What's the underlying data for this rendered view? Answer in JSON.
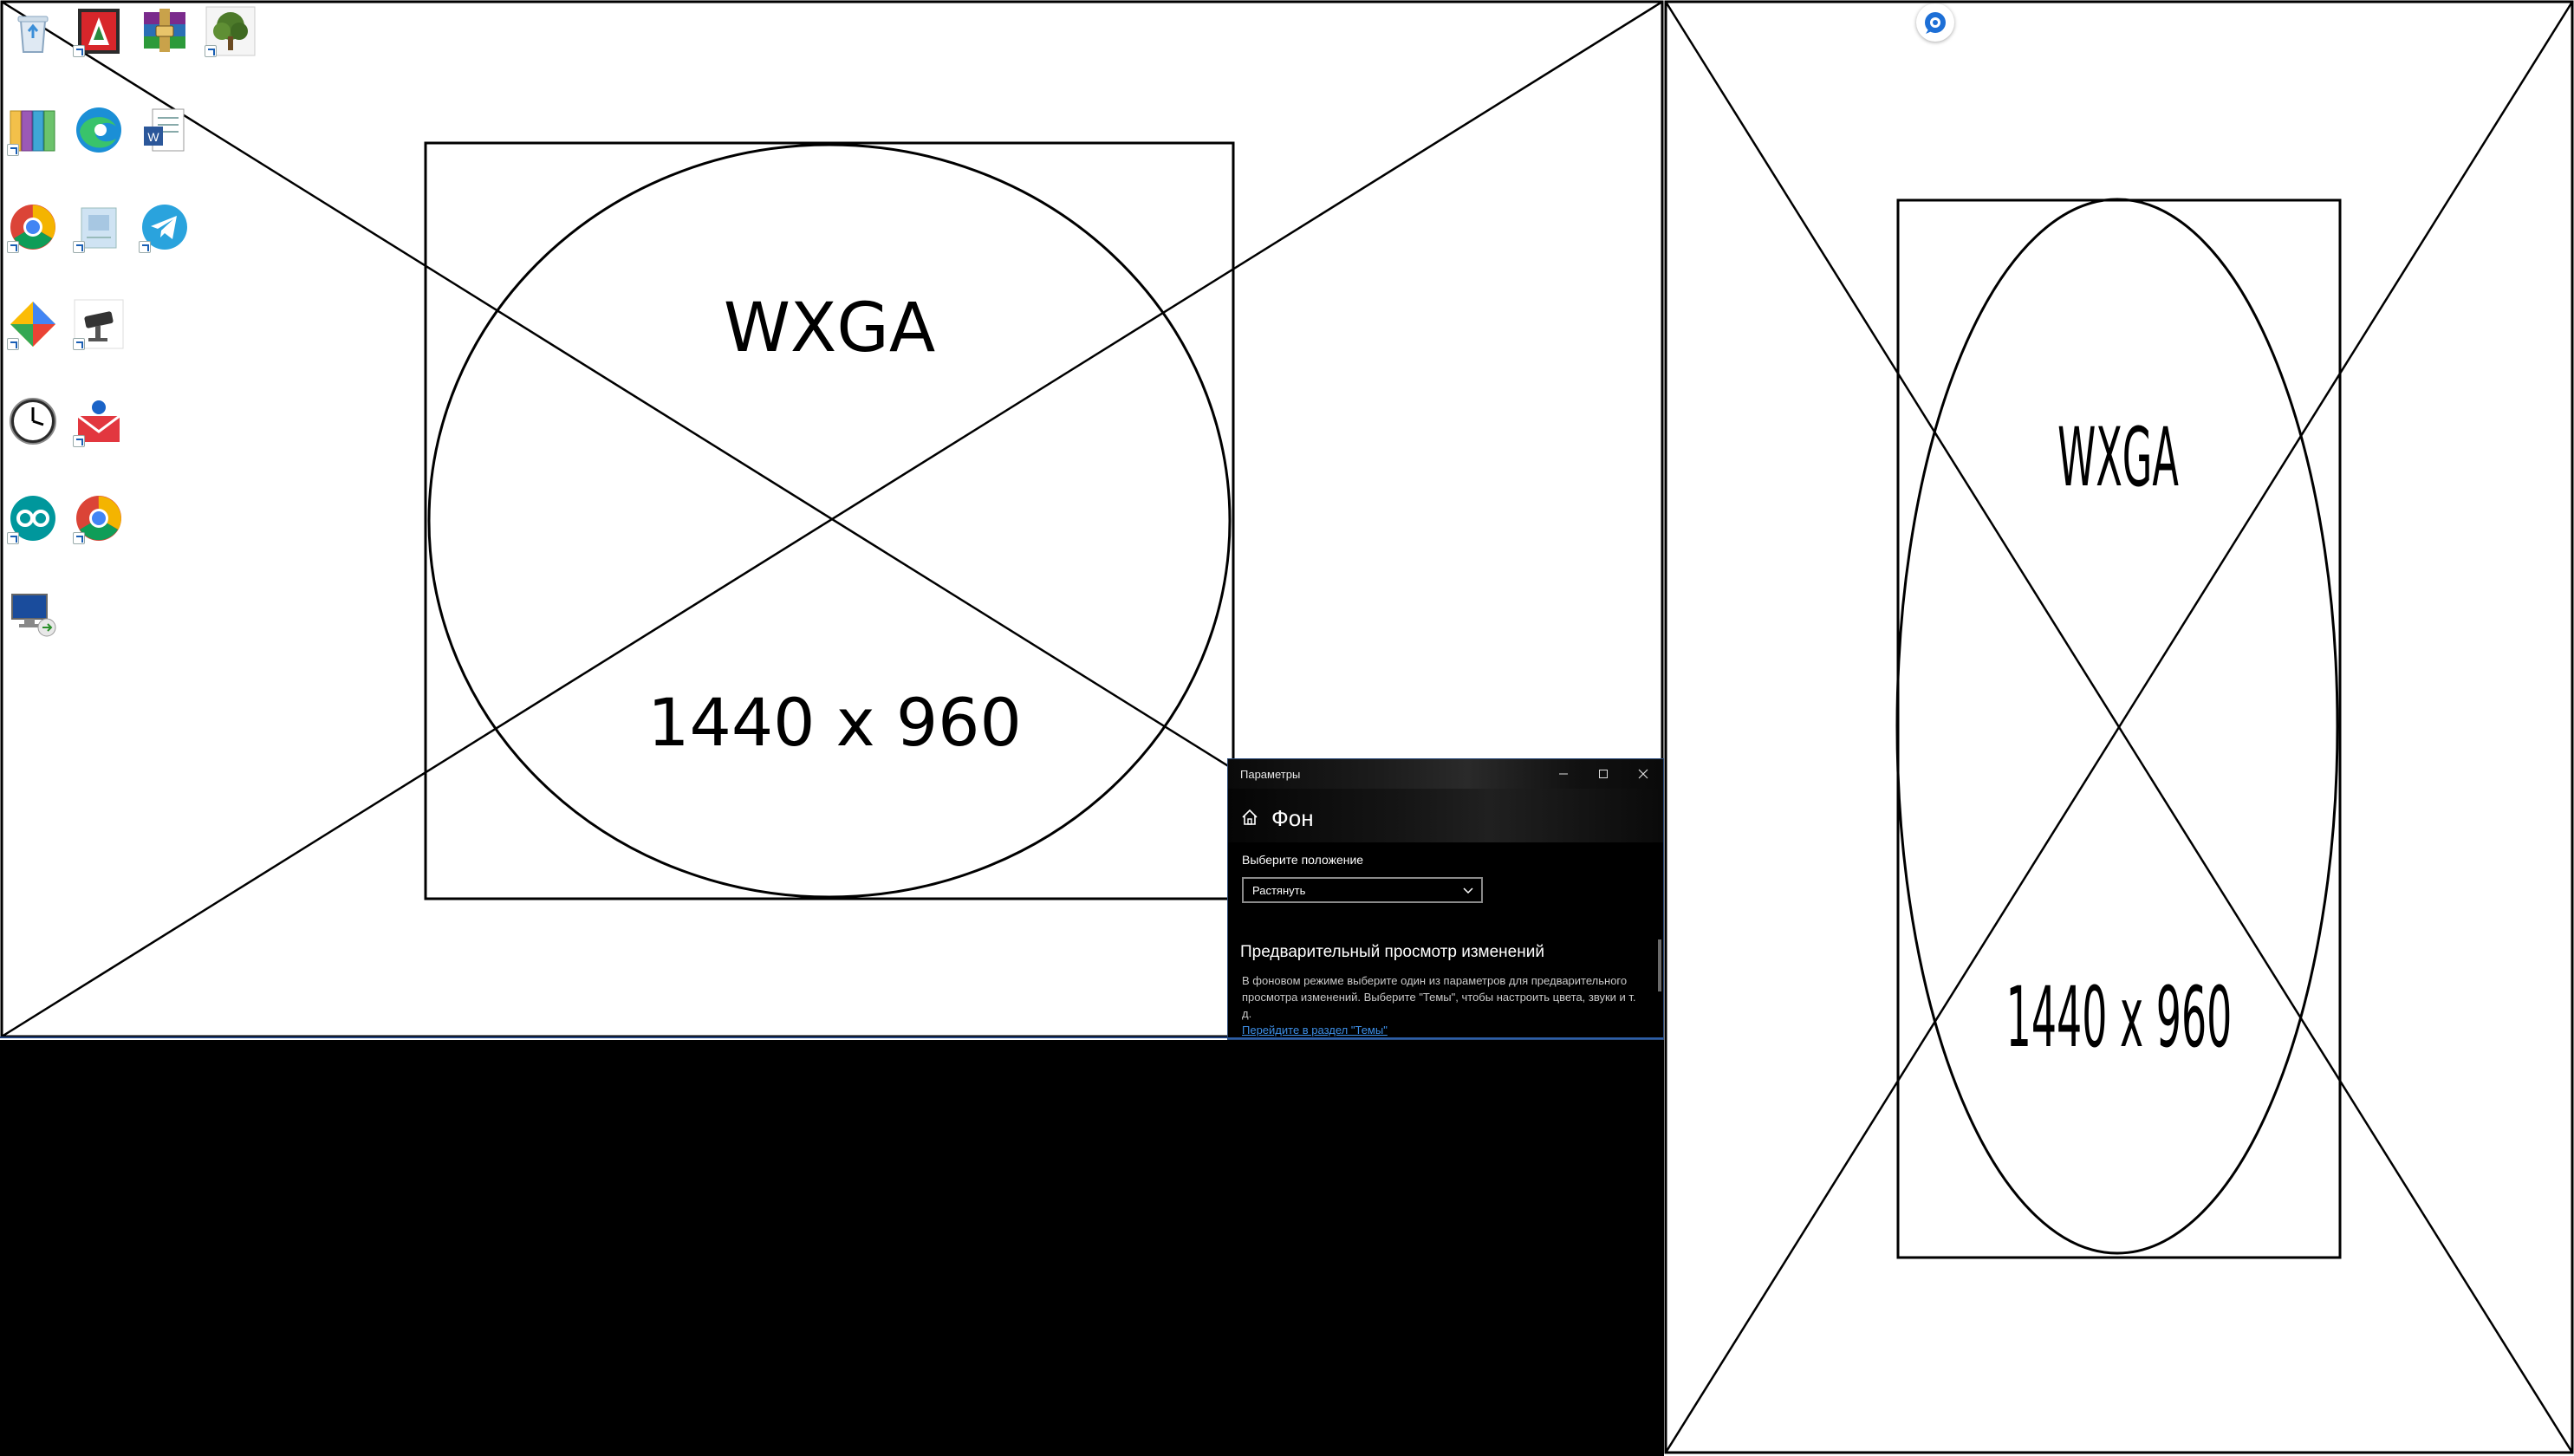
{
  "left_wallpaper": {
    "line1": "WXGA",
    "line2": "1440 x 960"
  },
  "right_wallpaper": {
    "line1": "WXGA",
    "line2": "1440 x 960"
  },
  "desktop_icons": [
    "recycle-bin-icon",
    "red-app-shortcut-icon",
    "winrar-icon",
    "tree-app-icon",
    "binders-app-icon",
    "edge-icon",
    "word-document-icon",
    "chrome-icon",
    "folder-document-icon",
    "telegram-icon",
    "maps-app-icon",
    "cctv-camera-icon",
    "clock-icon",
    "mail-app-icon",
    "arduino-icon",
    "chrome-icon-2",
    "remote-desktop-icon"
  ],
  "settings": {
    "window_title": "Параметры",
    "page_title": "Фон",
    "position_label": "Выберите положение",
    "position_value": "Растянуть",
    "preview_title": "Предварительный просмотр изменений",
    "preview_desc": "В фоновом режиме выберите один из параметров для предварительного просмотра изменений. Выберите \"Темы\", чтобы настроить цвета, звуки и т. д.",
    "themes_link": "Перейдите в раздел \"Темы\""
  },
  "colors": {
    "link": "#3d8ee6",
    "accent_line": "#2c5ea8",
    "window_bg": "#000000"
  }
}
